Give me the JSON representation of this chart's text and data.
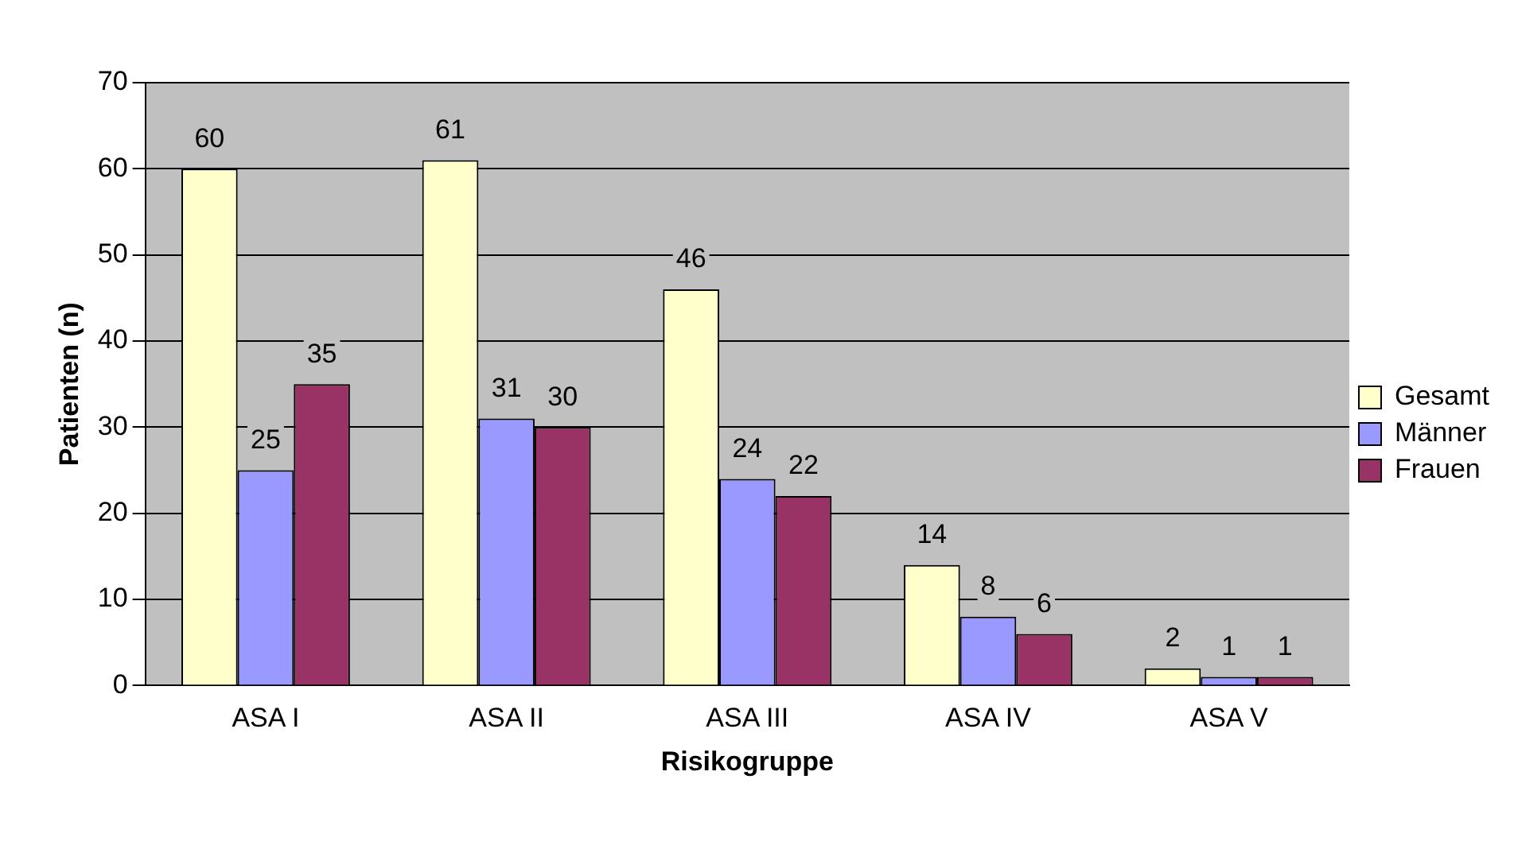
{
  "chart_data": {
    "type": "bar",
    "xlabel": "Risikogruppe",
    "ylabel": "Patienten (n)",
    "categories": [
      "ASA I",
      "ASA II",
      "ASA III",
      "ASA IV",
      "ASA V"
    ],
    "series": [
      {
        "name": "Gesamt",
        "color": "#ffffcc",
        "values": [
          60,
          61,
          46,
          14,
          2
        ]
      },
      {
        "name": "Männer",
        "color": "#9999ff",
        "values": [
          25,
          31,
          24,
          8,
          1
        ]
      },
      {
        "name": "Frauen",
        "color": "#993366",
        "values": [
          35,
          30,
          22,
          6,
          1
        ]
      }
    ],
    "ylim": [
      0,
      70
    ],
    "yticks": [
      0,
      10,
      20,
      30,
      40,
      50,
      60,
      70
    ],
    "grid": "y",
    "legend": "right",
    "data_labels": true
  }
}
